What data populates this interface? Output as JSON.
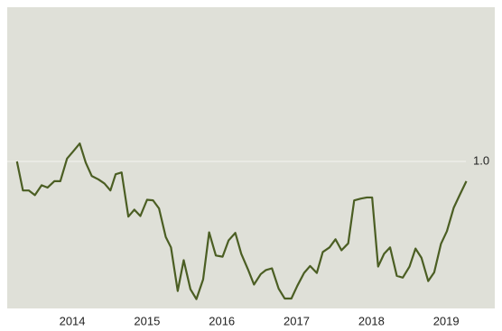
{
  "chart_data": {
    "type": "line",
    "x": [
      2013.26,
      2013.34,
      2013.42,
      2013.5,
      2013.59,
      2013.67,
      2013.76,
      2013.84,
      2013.93,
      2014.01,
      2014.1,
      2014.18,
      2014.26,
      2014.35,
      2014.43,
      2014.51,
      2014.58,
      2014.66,
      2014.75,
      2014.83,
      2014.91,
      2015.0,
      2015.08,
      2015.16,
      2015.25,
      2015.32,
      2015.41,
      2015.49,
      2015.58,
      2015.66,
      2015.75,
      2015.83,
      2015.92,
      2016.01,
      2016.09,
      2016.18,
      2016.26,
      2016.35,
      2016.43,
      2016.52,
      2016.59,
      2016.67,
      2016.76,
      2016.84,
      2016.93,
      2017.01,
      2017.1,
      2017.18,
      2017.27,
      2017.35,
      2017.44,
      2017.52,
      2017.6,
      2017.69,
      2017.77,
      2017.86,
      2017.94,
      2018.01,
      2018.09,
      2018.17,
      2018.25,
      2018.34,
      2018.42,
      2018.51,
      2018.59,
      2018.67,
      2018.76,
      2018.84,
      2018.93,
      2019.01,
      2019.1,
      2019.18,
      2019.27
    ],
    "series": [
      {
        "color": "#4b5e23",
        "values": [
          1.0,
          0.95,
          0.95,
          0.942,
          0.959,
          0.955,
          0.966,
          0.966,
          1.005,
          1.017,
          1.031,
          0.998,
          0.975,
          0.969,
          0.962,
          0.95,
          0.978,
          0.981,
          0.905,
          0.917,
          0.906,
          0.934,
          0.933,
          0.919,
          0.87,
          0.852,
          0.777,
          0.83,
          0.78,
          0.763,
          0.797,
          0.878,
          0.838,
          0.836,
          0.864,
          0.877,
          0.841,
          0.814,
          0.788,
          0.806,
          0.813,
          0.816,
          0.781,
          0.764,
          0.764,
          0.786,
          0.808,
          0.82,
          0.808,
          0.844,
          0.852,
          0.866,
          0.847,
          0.859,
          0.933,
          0.936,
          0.938,
          0.938,
          0.819,
          0.841,
          0.852,
          0.803,
          0.8,
          0.819,
          0.85,
          0.834,
          0.794,
          0.809,
          0.858,
          0.88,
          0.92,
          0.942,
          0.966
        ]
      }
    ],
    "xlim": [
      2013.13,
      2019.65
    ],
    "xticks": [
      2014,
      2015,
      2016,
      2017,
      2018,
      2019
    ],
    "ylim": [
      0.75,
      1.25
    ],
    "yticks": [
      {
        "value": 1,
        "label": "1.0"
      }
    ],
    "grid": true
  }
}
